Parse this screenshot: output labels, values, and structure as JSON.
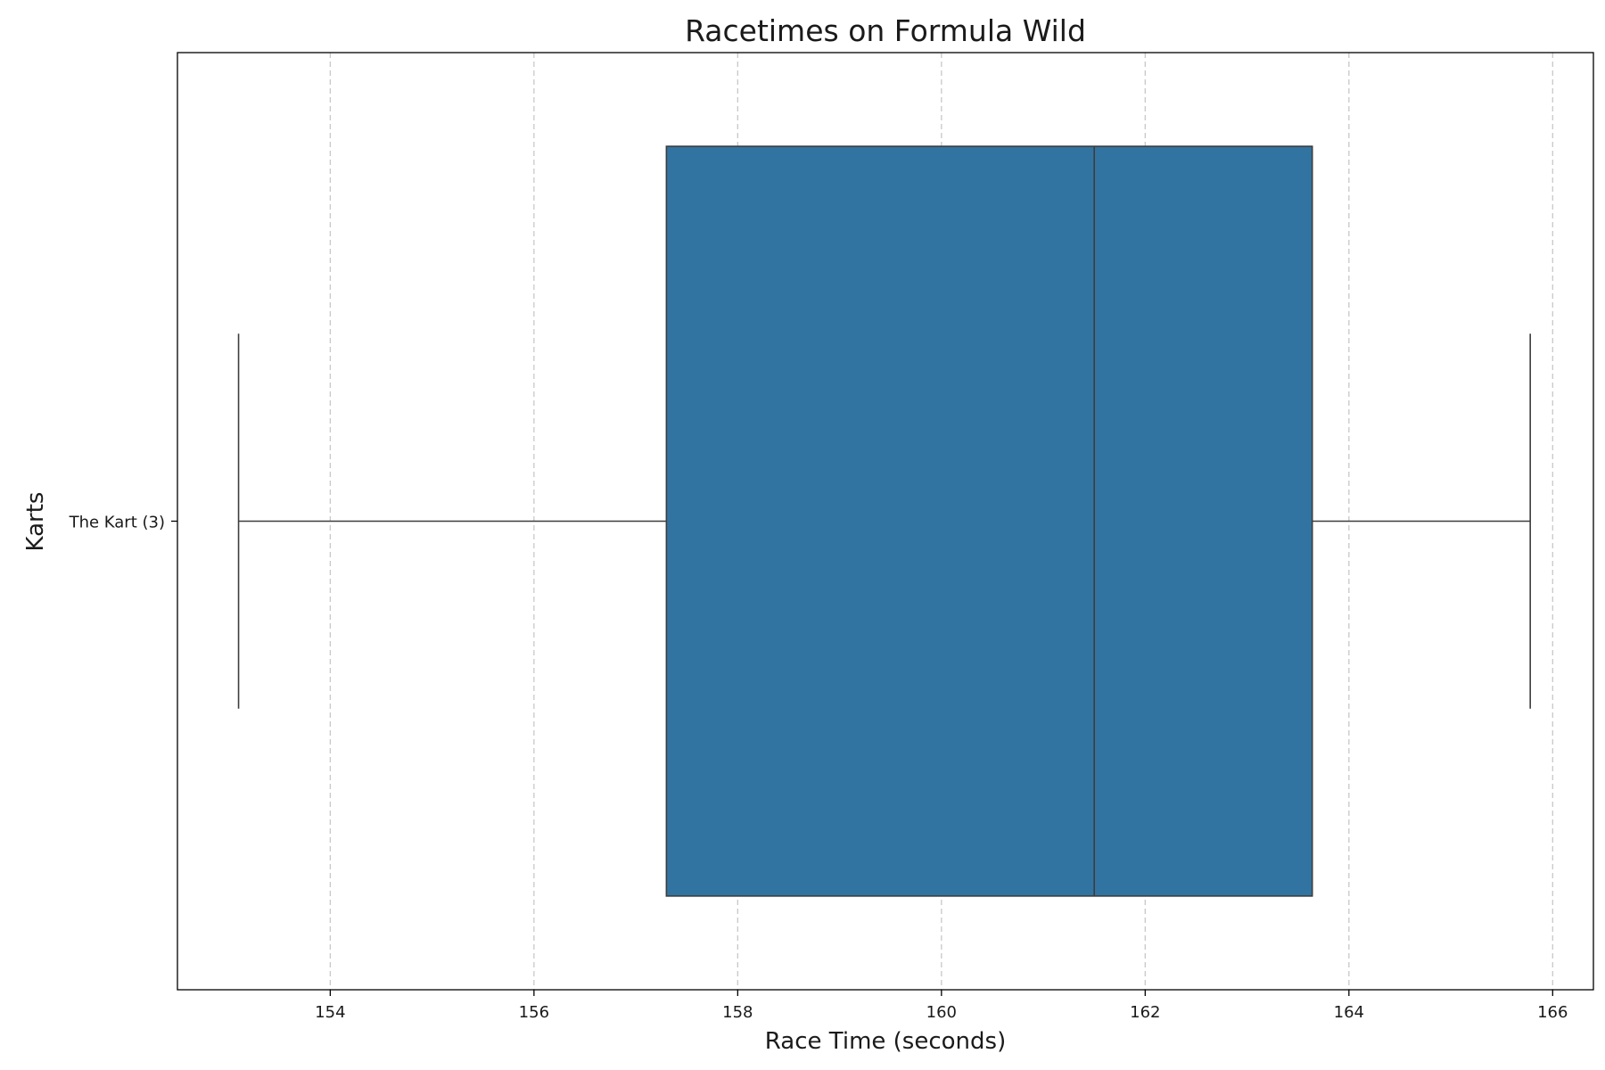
{
  "chart_data": {
    "type": "box",
    "orientation": "horizontal",
    "title": "Racetimes on Formula Wild",
    "xlabel": "Race Time (seconds)",
    "ylabel": "Karts",
    "xlim": [
      152.5,
      166.4
    ],
    "xticks": [
      154,
      156,
      158,
      160,
      162,
      164,
      166
    ],
    "grid": "x-dashed",
    "box_color": "#3274a1",
    "edge_color": "#3d3d3d",
    "categories": [
      "The Kart (3)"
    ],
    "boxes": [
      {
        "category": "The Kart (3)",
        "min": 153.1,
        "q1": 157.3,
        "median": 161.5,
        "q3": 163.64,
        "max": 165.78
      }
    ]
  }
}
